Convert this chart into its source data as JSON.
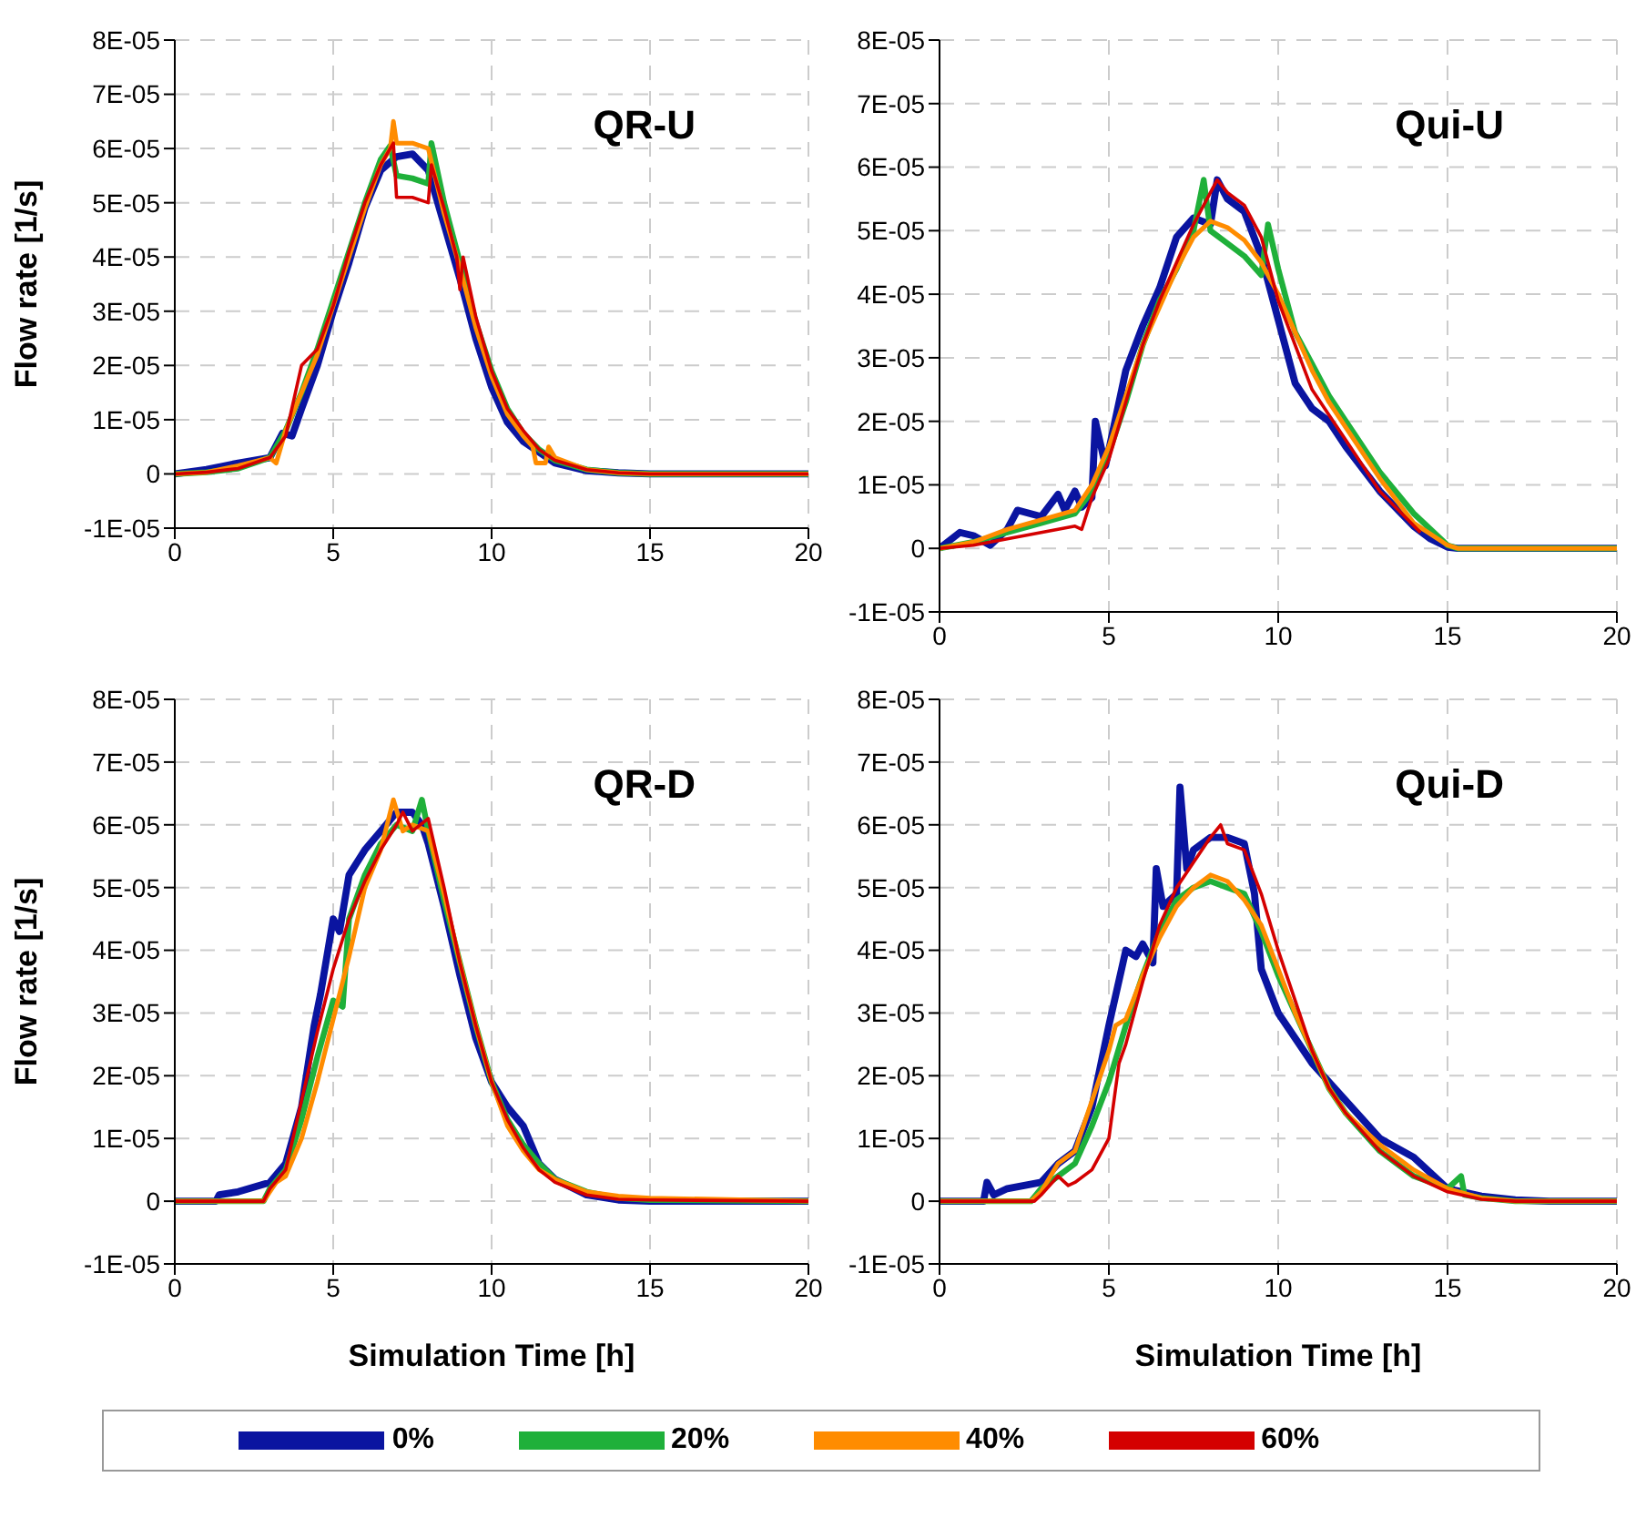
{
  "chart_data": [
    {
      "type": "line",
      "title": "QR-U",
      "ylabel": "Flow rate [1/s]",
      "xlim": [
        0,
        20
      ],
      "xticks": [
        0,
        5,
        10,
        15,
        20
      ],
      "ylim": [
        -1e-05,
        8e-05
      ],
      "yticks": [
        {
          "value": -1e-05,
          "label": "-1E-05"
        },
        {
          "value": 0,
          "label": "0"
        },
        {
          "value": 1e-05,
          "label": "1E-05"
        },
        {
          "value": 2e-05,
          "label": "2E-05"
        },
        {
          "value": 3e-05,
          "label": "3E-05"
        },
        {
          "value": 4e-05,
          "label": "4E-05"
        },
        {
          "value": 5e-05,
          "label": "5E-05"
        },
        {
          "value": 6e-05,
          "label": "6E-05"
        },
        {
          "value": 7e-05,
          "label": "7E-05"
        },
        {
          "value": 8e-05,
          "label": "8E-05"
        }
      ],
      "grid": true,
      "legend": "bottom",
      "line_style": "solid",
      "marker": "none",
      "series": [
        {
          "name": "0%",
          "color": "#0a14a0",
          "x": [
            0,
            1,
            2,
            3,
            3.4,
            3.7,
            4,
            4.5,
            5,
            5.5,
            6,
            6.5,
            7,
            7.5,
            8,
            8.5,
            9,
            9.5,
            10,
            10.5,
            11,
            11.5,
            12,
            13,
            14,
            15,
            20
          ],
          "values": [
            0,
            8e-07,
            2e-06,
            3e-06,
            7.5e-06,
            7e-06,
            1.2e-05,
            2e-05,
            3e-05,
            3.9e-05,
            4.9e-05,
            5.6e-05,
            5.85e-05,
            5.9e-05,
            5.6e-05,
            4.6e-05,
            3.6e-05,
            2.5e-05,
            1.6e-05,
            9.5e-06,
            6e-06,
            4e-06,
            2e-06,
            6e-07,
            2e-07,
            0,
            0
          ]
        },
        {
          "name": "20%",
          "color": "#1fb03a",
          "x": [
            0,
            1,
            2,
            3,
            3.5,
            4,
            4.5,
            5,
            5.5,
            6,
            6.5,
            6.8,
            7,
            7.5,
            8,
            8.1,
            8.5,
            9,
            9.5,
            10,
            10.5,
            11,
            11.5,
            12,
            13,
            14,
            15,
            20
          ],
          "values": [
            0,
            3e-07,
            1e-06,
            3e-06,
            8e-06,
            1.5e-05,
            2.3e-05,
            3.2e-05,
            4.1e-05,
            5e-05,
            5.8e-05,
            6.05e-05,
            5.5e-05,
            5.45e-05,
            5.35e-05,
            6.1e-05,
            5e-05,
            3.9e-05,
            2.8e-05,
            1.9e-05,
            1.2e-05,
            7.5e-06,
            4.5e-06,
            2.5e-06,
            8e-07,
            2e-07,
            0,
            0
          ]
        },
        {
          "name": "40%",
          "color": "#ff8c00",
          "x": [
            0,
            1,
            2,
            3,
            3.2,
            3.5,
            4,
            4.5,
            5,
            5.5,
            6,
            6.5,
            6.8,
            6.9,
            7.0,
            7.5,
            8,
            8.5,
            9,
            9.5,
            10,
            10.5,
            11,
            11.3,
            11.4,
            11.7,
            11.8,
            12,
            13,
            14,
            15,
            20
          ],
          "values": [
            0,
            3e-07,
            1.5e-06,
            3e-06,
            2e-06,
            8e-06,
            1.5e-05,
            2.2e-05,
            3.1e-05,
            4e-05,
            4.9e-05,
            5.7e-05,
            6e-05,
            6.5e-05,
            6.1e-05,
            6.1e-05,
            6e-05,
            4.8e-05,
            3.8e-05,
            2.7e-05,
            1.8e-05,
            1.1e-05,
            7e-06,
            5e-06,
            2e-06,
            2e-06,
            5e-06,
            3e-06,
            8e-07,
            2e-07,
            0,
            0
          ]
        },
        {
          "name": "60%",
          "color": "#d40000",
          "x": [
            0,
            1,
            2,
            3,
            3.5,
            4,
            4.5,
            5,
            5.5,
            6,
            6.5,
            6.9,
            7.0,
            7.5,
            8,
            8.1,
            8.5,
            8.9,
            9.0,
            9.1,
            9.5,
            10,
            10.5,
            11,
            11.5,
            12,
            13,
            14,
            15,
            20
          ],
          "values": [
            0,
            3e-07,
            1e-06,
            3e-06,
            7e-06,
            2e-05,
            2.3e-05,
            3.1e-05,
            4.1e-05,
            5e-05,
            5.7e-05,
            6.1e-05,
            5.1e-05,
            5.1e-05,
            5e-05,
            5.7e-05,
            4.9e-05,
            4e-05,
            3.4e-05,
            4e-05,
            2.9e-05,
            1.9e-05,
            1.2e-05,
            8e-06,
            4.5e-06,
            2.5e-06,
            8e-07,
            2e-07,
            0,
            0
          ]
        }
      ]
    },
    {
      "type": "line",
      "title": "Qui-U",
      "xlim": [
        0,
        20
      ],
      "xticks": [
        0,
        5,
        10,
        15,
        20
      ],
      "ylim": [
        -1e-05,
        8e-05
      ],
      "yticks": [
        {
          "value": -1e-05,
          "label": "-1E-05"
        },
        {
          "value": 0,
          "label": "0"
        },
        {
          "value": 1e-05,
          "label": "1E-05"
        },
        {
          "value": 2e-05,
          "label": "2E-05"
        },
        {
          "value": 3e-05,
          "label": "3E-05"
        },
        {
          "value": 4e-05,
          "label": "4E-05"
        },
        {
          "value": 5e-05,
          "label": "5E-05"
        },
        {
          "value": 6e-05,
          "label": "6E-05"
        },
        {
          "value": 7e-05,
          "label": "7E-05"
        },
        {
          "value": 8e-05,
          "label": "8E-05"
        }
      ],
      "grid": true,
      "line_style": "solid",
      "marker": "none",
      "series": [
        {
          "color": "#0a14a0",
          "x": [
            0,
            0.6,
            1,
            1.5,
            2,
            2.3,
            3,
            3.5,
            3.7,
            4,
            4.2,
            4.5,
            4.6,
            4.9,
            5.5,
            6,
            6.5,
            7,
            7.5,
            8,
            8.2,
            8.5,
            9,
            9.5,
            10,
            10.5,
            11,
            11.5,
            12,
            13,
            14,
            14.5,
            15,
            15.3,
            20
          ],
          "values": [
            0,
            2.5e-06,
            2e-06,
            5e-07,
            3e-06,
            6e-06,
            5e-06,
            8.5e-06,
            6e-06,
            9e-06,
            6.5e-06,
            8e-06,
            2e-05,
            1.3e-05,
            2.8e-05,
            3.5e-05,
            4.1e-05,
            4.9e-05,
            5.2e-05,
            5.1e-05,
            5.8e-05,
            5.5e-05,
            5.3e-05,
            4.6e-05,
            3.6e-05,
            2.6e-05,
            2.2e-05,
            2e-05,
            1.6e-05,
            9e-06,
            3.5e-06,
            1.5e-06,
            2e-07,
            0,
            0
          ]
        },
        {
          "color": "#1fb03a",
          "x": [
            0,
            1,
            2,
            3,
            4,
            4.5,
            5,
            5.5,
            6,
            6.5,
            7,
            7.5,
            7.8,
            8,
            8.5,
            9,
            9.5,
            9.7,
            10,
            10.5,
            11,
            11.5,
            12,
            13,
            14,
            15,
            15.3,
            20
          ],
          "values": [
            0,
            1e-06,
            2.5e-06,
            4e-06,
            5.5e-06,
            9e-06,
            1.5e-05,
            2.3e-05,
            3.2e-05,
            3.9e-05,
            4.4e-05,
            5e-05,
            5.8e-05,
            5e-05,
            4.8e-05,
            4.6e-05,
            4.3e-05,
            5.1e-05,
            4.4e-05,
            3.4e-05,
            2.9e-05,
            2.4e-05,
            2e-05,
            1.2e-05,
            5.5e-06,
            5e-07,
            0,
            0
          ]
        },
        {
          "color": "#ff8c00",
          "x": [
            0,
            1,
            2,
            3,
            4,
            4.5,
            5,
            5.5,
            6,
            6.5,
            7,
            7.5,
            8,
            8.5,
            9,
            9.5,
            10,
            10.5,
            11,
            11.5,
            12,
            13,
            14,
            15,
            15.3,
            20
          ],
          "values": [
            0,
            1e-06,
            3e-06,
            4.5e-06,
            6e-06,
            1e-05,
            1.6e-05,
            2.4e-05,
            3.2e-05,
            3.8e-05,
            4.4e-05,
            4.9e-05,
            5.15e-05,
            5.05e-05,
            4.85e-05,
            4.5e-05,
            4e-05,
            3.4e-05,
            2.8e-05,
            2.3e-05,
            1.9e-05,
            1.1e-05,
            4e-06,
            5e-07,
            0,
            0
          ]
        },
        {
          "color": "#d40000",
          "x": [
            0,
            1,
            2,
            3,
            4,
            4.2,
            4.5,
            5,
            5.5,
            6,
            6.5,
            7,
            7.5,
            8,
            8.2,
            8.5,
            9,
            9.5,
            10,
            10.5,
            11,
            11.5,
            12,
            13,
            14.2
          ],
          "values": [
            0,
            5e-07,
            1.5e-06,
            2.5e-06,
            3.5e-06,
            3e-06,
            8e-06,
            1.4e-05,
            2.3e-05,
            3.2e-05,
            3.9e-05,
            4.5e-05,
            5.1e-05,
            5.6e-05,
            5.8e-05,
            5.6e-05,
            5.4e-05,
            4.9e-05,
            3.9e-05,
            3.2e-05,
            2.5e-05,
            2.1e-05,
            1.7e-05,
            9e-06,
            2.5e-06
          ]
        }
      ]
    },
    {
      "type": "line",
      "title": "QR-D",
      "xlabel": "Simulation Time [h]",
      "ylabel": "Flow rate [1/s]",
      "xlim": [
        0,
        20
      ],
      "xticks": [
        0,
        5,
        10,
        15,
        20
      ],
      "ylim": [
        -1e-05,
        8e-05
      ],
      "yticks": [
        {
          "value": -1e-05,
          "label": "-1E-05"
        },
        {
          "value": 0,
          "label": "0"
        },
        {
          "value": 1e-05,
          "label": "1E-05"
        },
        {
          "value": 2e-05,
          "label": "2E-05"
        },
        {
          "value": 3e-05,
          "label": "3E-05"
        },
        {
          "value": 4e-05,
          "label": "4E-05"
        },
        {
          "value": 5e-05,
          "label": "5E-05"
        },
        {
          "value": 6e-05,
          "label": "6E-05"
        },
        {
          "value": 7e-05,
          "label": "7E-05"
        },
        {
          "value": 8e-05,
          "label": "8E-05"
        }
      ],
      "grid": true,
      "line_style": "solid",
      "marker": "none",
      "series": [
        {
          "color": "#0a14a0",
          "x": [
            0,
            1.3,
            1.4,
            2,
            3,
            3.5,
            4,
            4.4,
            4.6,
            5,
            5.2,
            5.5,
            6,
            6.5,
            7,
            7.5,
            7.8,
            8,
            8.5,
            9,
            9.5,
            10,
            10.5,
            11,
            11.5,
            12,
            13,
            14,
            15,
            20
          ],
          "values": [
            0,
            0,
            1e-06,
            1.5e-06,
            3e-06,
            6e-06,
            1.5e-05,
            2.8e-05,
            3.3e-05,
            4.5e-05,
            4.3e-05,
            5.2e-05,
            5.6e-05,
            5.9e-05,
            6.2e-05,
            6.2e-05,
            6e-05,
            5.7e-05,
            4.7e-05,
            3.6e-05,
            2.6e-05,
            1.9e-05,
            1.5e-05,
            1.2e-05,
            6e-06,
            3.5e-06,
            1e-06,
            2e-07,
            0,
            0
          ]
        },
        {
          "color": "#1fb03a",
          "x": [
            0,
            2.8,
            3,
            3.5,
            4,
            4.5,
            5,
            5.3,
            5.5,
            6,
            6.5,
            7,
            7.5,
            7.8,
            8,
            8.5,
            9,
            9.5,
            10,
            10.5,
            11,
            11.5,
            12,
            13,
            14,
            15,
            20
          ],
          "values": [
            0,
            0,
            2e-06,
            5e-06,
            1.3e-05,
            2.3e-05,
            3.2e-05,
            3.1e-05,
            4.5e-05,
            5.2e-05,
            5.7e-05,
            6e-05,
            5.9e-05,
            6.4e-05,
            5.9e-05,
            4.8e-05,
            3.8e-05,
            2.8e-05,
            1.9e-05,
            1.3e-05,
            9e-06,
            6e-06,
            3.5e-06,
            1.5e-06,
            5e-07,
            2e-07,
            0
          ]
        },
        {
          "color": "#ff8c00",
          "x": [
            0,
            2.8,
            3.2,
            3.5,
            4,
            4.5,
            5,
            5.5,
            6,
            6.5,
            6.9,
            7.2,
            7.5,
            8,
            8.5,
            9,
            9.5,
            10,
            10.5,
            11,
            11.5,
            12,
            13,
            14,
            15,
            20
          ],
          "values": [
            0,
            0,
            3e-06,
            4e-06,
            1e-05,
            1.9e-05,
            2.9e-05,
            3.9e-05,
            5e-05,
            5.6e-05,
            6.4e-05,
            5.9e-05,
            6e-05,
            5.9e-05,
            4.9e-05,
            3.8e-05,
            2.8e-05,
            1.9e-05,
            1.2e-05,
            8e-06,
            5e-06,
            3.5e-06,
            1.5e-06,
            8e-07,
            5e-07,
            0
          ]
        },
        {
          "color": "#d40000",
          "x": [
            0,
            2.8,
            3,
            3.5,
            4,
            4.5,
            5,
            5.5,
            6,
            6.5,
            7,
            7.2,
            7.5,
            8,
            8.5,
            9,
            9.5,
            10,
            10.5,
            11,
            11.5,
            12,
            13,
            14,
            15,
            20
          ],
          "values": [
            0,
            0,
            2e-06,
            5e-06,
            1.6e-05,
            2.7e-05,
            3.7e-05,
            4.5e-05,
            5.1e-05,
            5.6e-05,
            6e-05,
            6.2e-05,
            5.9e-05,
            6.1e-05,
            5e-05,
            3.8e-05,
            2.8e-05,
            1.9e-05,
            1.3e-05,
            8.5e-06,
            5e-06,
            3e-06,
            1e-06,
            3e-07,
            2e-07,
            0
          ]
        }
      ]
    },
    {
      "type": "line",
      "title": "Qui-D",
      "xlabel": "Simulation Time [h]",
      "xlim": [
        0,
        20
      ],
      "xticks": [
        0,
        5,
        10,
        15,
        20
      ],
      "ylim": [
        -1e-05,
        8e-05
      ],
      "yticks": [
        {
          "value": -1e-05,
          "label": "-1E-05"
        },
        {
          "value": 0,
          "label": "0"
        },
        {
          "value": 1e-05,
          "label": "1E-05"
        },
        {
          "value": 2e-05,
          "label": "2E-05"
        },
        {
          "value": 3e-05,
          "label": "3E-05"
        },
        {
          "value": 4e-05,
          "label": "4E-05"
        },
        {
          "value": 5e-05,
          "label": "5E-05"
        },
        {
          "value": 6e-05,
          "label": "6E-05"
        },
        {
          "value": 7e-05,
          "label": "7E-05"
        },
        {
          "value": 8e-05,
          "label": "8E-05"
        }
      ],
      "grid": true,
      "line_style": "solid",
      "marker": "none",
      "series": [
        {
          "color": "#0a14a0",
          "x": [
            0,
            1.3,
            1.4,
            1.6,
            2,
            2.5,
            3,
            3.5,
            4,
            4.5,
            5,
            5.5,
            5.8,
            6,
            6.3,
            6.4,
            6.6,
            7,
            7.1,
            7.3,
            7.5,
            8,
            8.5,
            9,
            9.3,
            9.5,
            10,
            10.5,
            11,
            12,
            13,
            14,
            14.5,
            15,
            16,
            17,
            18,
            20
          ],
          "values": [
            0,
            0,
            3e-06,
            1e-06,
            2e-06,
            2.5e-06,
            3e-06,
            6e-06,
            8e-06,
            1.5e-05,
            2.8e-05,
            4e-05,
            3.9e-05,
            4.1e-05,
            3.8e-05,
            5.3e-05,
            4.7e-05,
            4.9e-05,
            6.6e-05,
            5.3e-05,
            5.6e-05,
            5.8e-05,
            5.8e-05,
            5.7e-05,
            4.9e-05,
            3.7e-05,
            3e-05,
            2.6e-05,
            2.2e-05,
            1.6e-05,
            1e-05,
            7e-06,
            4.5e-06,
            2e-06,
            8e-07,
            2e-07,
            0,
            0
          ]
        },
        {
          "color": "#1fb03a",
          "x": [
            0,
            2.7,
            3,
            3.5,
            4,
            4.5,
            5,
            5.5,
            6,
            6.5,
            7,
            7.5,
            8,
            8.5,
            9,
            9.5,
            10,
            10.5,
            11,
            11.5,
            12,
            13,
            14,
            15,
            15.4,
            15.5,
            16,
            17,
            20
          ],
          "values": [
            0,
            0,
            2e-06,
            4e-06,
            6e-06,
            1.2e-05,
            1.9e-05,
            2.8e-05,
            3.6e-05,
            4.3e-05,
            4.8e-05,
            5e-05,
            5.1e-05,
            5e-05,
            4.9e-05,
            4.3e-05,
            3.6e-05,
            3e-05,
            2.4e-05,
            1.8e-05,
            1.4e-05,
            8e-06,
            4e-06,
            2e-06,
            4e-06,
            1e-06,
            5e-07,
            0,
            0
          ]
        },
        {
          "color": "#ff8c00",
          "x": [
            0,
            2.7,
            3,
            3.5,
            4,
            4.5,
            5,
            5.2,
            5.5,
            6,
            6.5,
            7,
            7.5,
            8,
            8.5,
            9,
            9.5,
            10,
            10.5,
            11,
            11.5,
            12,
            13,
            14,
            15,
            16,
            17,
            20
          ],
          "values": [
            0,
            0,
            1.5e-06,
            6e-06,
            8e-06,
            1.6e-05,
            2.4e-05,
            2.8e-05,
            2.9e-05,
            3.6e-05,
            4.2e-05,
            4.7e-05,
            5e-05,
            5.2e-05,
            5.1e-05,
            4.8e-05,
            4.4e-05,
            3.7e-05,
            3e-05,
            2.4e-05,
            1.8e-05,
            1.4e-05,
            9e-06,
            5e-06,
            2e-06,
            5e-07,
            0,
            0
          ]
        },
        {
          "color": "#d40000",
          "x": [
            0,
            2.8,
            3,
            3.5,
            3.8,
            4,
            4.5,
            5,
            5.3,
            5.5,
            6,
            6.5,
            7,
            7.5,
            8,
            8.3,
            8.5,
            9,
            9.5,
            10,
            10.5,
            11,
            11.5,
            12,
            13,
            14,
            15,
            16,
            17,
            20
          ],
          "values": [
            0,
            0,
            1e-06,
            4e-06,
            2.5e-06,
            3e-06,
            5e-06,
            1e-05,
            2.2e-05,
            2.5e-05,
            3.5e-05,
            4.4e-05,
            5e-05,
            5.4e-05,
            5.8e-05,
            6e-05,
            5.7e-05,
            5.6e-05,
            4.9e-05,
            4e-05,
            3.2e-05,
            2.4e-05,
            1.8e-05,
            1.4e-05,
            8e-06,
            4e-06,
            1.5e-06,
            3e-07,
            0,
            0
          ]
        }
      ]
    }
  ]
}
